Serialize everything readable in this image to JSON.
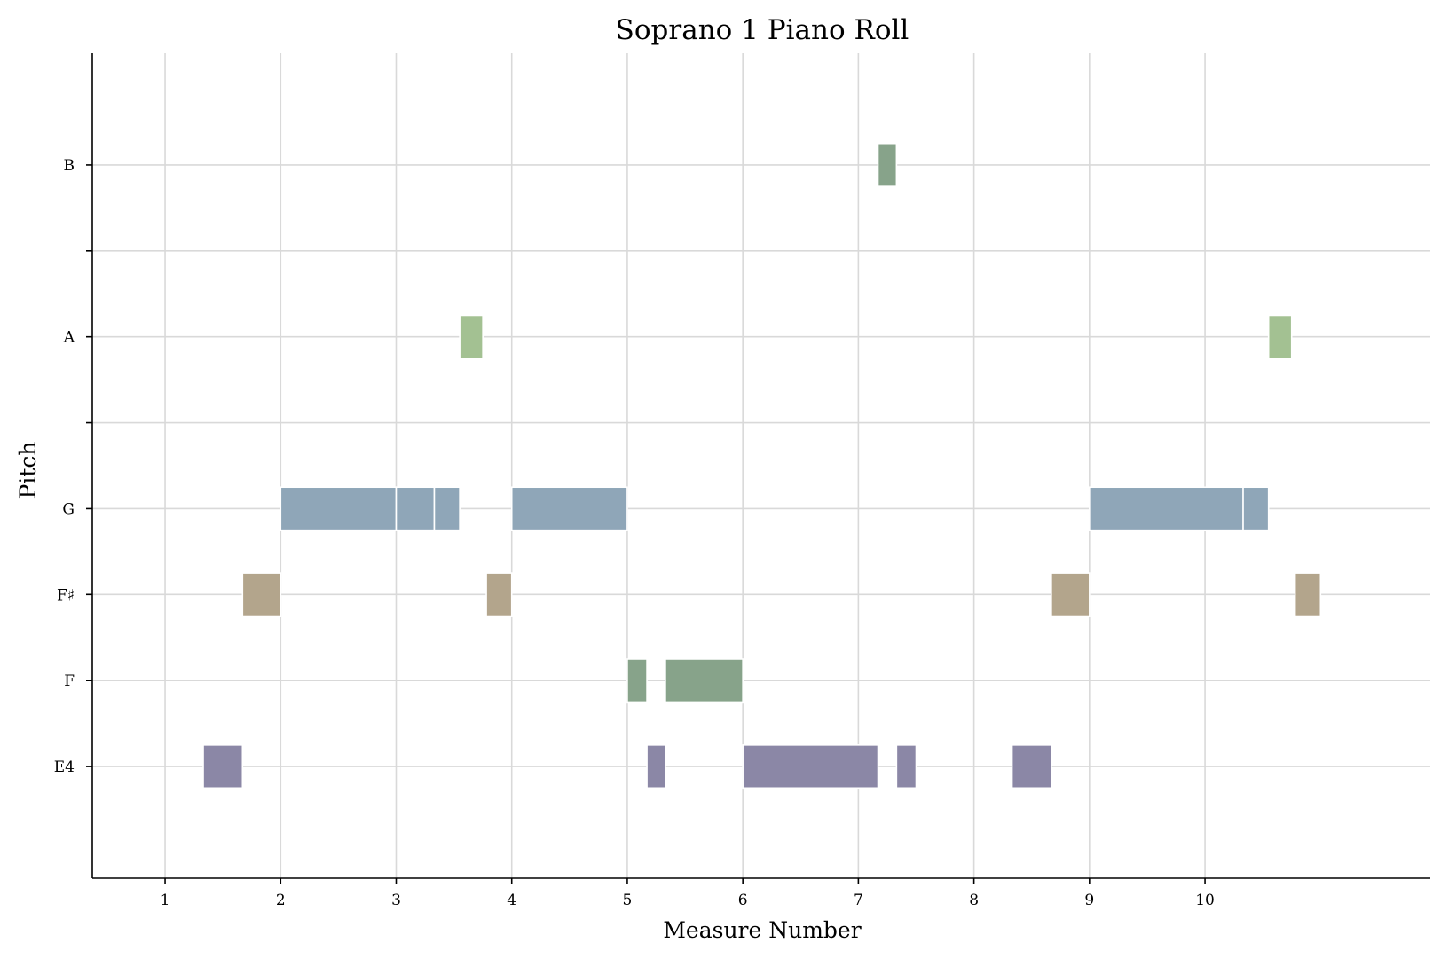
{
  "chart_data": {
    "type": "bar",
    "subtype": "piano-roll",
    "title": "Soprano 1 Piano Roll",
    "xlabel": "Measure Number",
    "ylabel": "Pitch",
    "xlim": [
      0.37,
      11.95
    ],
    "ylim": [
      -1.3,
      8.3
    ],
    "x_ticks": [
      1,
      2,
      3,
      4,
      5,
      6,
      7,
      8,
      9,
      10
    ],
    "x_tick_labels": [
      "1",
      "2",
      "3",
      "4",
      "5",
      "6",
      "7",
      "8",
      "9",
      "10"
    ],
    "y_ticks": [
      0,
      1,
      2,
      3,
      4,
      5,
      6,
      7
    ],
    "y_tick_labels": [
      "E4",
      "F",
      "F♯",
      "G",
      "",
      "A",
      "",
      "B"
    ],
    "grid": true,
    "pitch_colors": {
      "E": "#8b87a6",
      "F": "#87a38a",
      "F#": "#b3a58c",
      "G": "#8fa6b8",
      "A": "#a3c192",
      "B": "#87a38a"
    },
    "series": [
      {
        "pitch": "E",
        "notes": [
          [
            1.33,
            1.67
          ],
          [
            5.17,
            5.33
          ],
          [
            6.0,
            7.17
          ],
          [
            7.33,
            7.5
          ],
          [
            8.33,
            8.67
          ]
        ]
      },
      {
        "pitch": "F",
        "notes": [
          [
            5.0,
            5.17
          ],
          [
            5.33,
            6.0
          ]
        ]
      },
      {
        "pitch": "F#",
        "notes": [
          [
            1.67,
            2.0
          ],
          [
            3.78,
            4.0
          ],
          [
            8.67,
            9.0
          ],
          [
            10.78,
            11.0
          ]
        ]
      },
      {
        "pitch": "G",
        "notes": [
          [
            2.0,
            3.0
          ],
          [
            3.0,
            3.33
          ],
          [
            3.33,
            3.55
          ],
          [
            4.0,
            5.0
          ],
          [
            9.0,
            10.33
          ],
          [
            10.33,
            10.55
          ]
        ]
      },
      {
        "pitch": "A",
        "notes": [
          [
            3.55,
            3.75
          ],
          [
            10.55,
            10.75
          ]
        ]
      },
      {
        "pitch": "B",
        "notes": [
          [
            7.17,
            7.33
          ]
        ]
      }
    ]
  }
}
